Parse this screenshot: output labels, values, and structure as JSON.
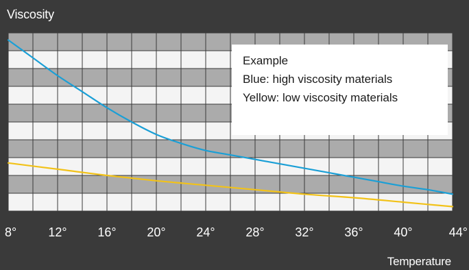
{
  "chart_data": {
    "type": "line",
    "title": "",
    "xlabel": "Temperature",
    "ylabel": "Viscosity",
    "xlim": [
      8,
      44
    ],
    "ylim": [
      0,
      10
    ],
    "x_ticks": [
      "8°",
      "12°",
      "16°",
      "20°",
      "24°",
      "28°",
      "32°",
      "36°",
      "40°",
      "44°"
    ],
    "x_tick_values": [
      8,
      12,
      16,
      20,
      24,
      28,
      32,
      36,
      40,
      44
    ],
    "grid": true,
    "legend_position": "top-right",
    "legend": {
      "title": "Example",
      "entries": [
        "Blue: high viscosity materials",
        "Yellow: low viscosity materials"
      ]
    },
    "series": [
      {
        "color": "#1a9fd6",
        "x": [
          8,
          10,
          12,
          14,
          16,
          18,
          20,
          22,
          24,
          26,
          28,
          30,
          32,
          34,
          36,
          38,
          40,
          42,
          44
        ],
        "y": [
          9.6,
          8.6,
          7.6,
          6.7,
          5.8,
          5.0,
          4.3,
          3.8,
          3.4,
          3.15,
          2.9,
          2.65,
          2.4,
          2.15,
          1.9,
          1.65,
          1.4,
          1.2,
          0.95
        ]
      },
      {
        "color": "#f2c218",
        "x": [
          8,
          12,
          16,
          20,
          24,
          28,
          32,
          36,
          40,
          44
        ],
        "y": [
          2.7,
          2.35,
          2.0,
          1.7,
          1.45,
          1.2,
          0.95,
          0.75,
          0.5,
          0.25
        ]
      }
    ]
  }
}
